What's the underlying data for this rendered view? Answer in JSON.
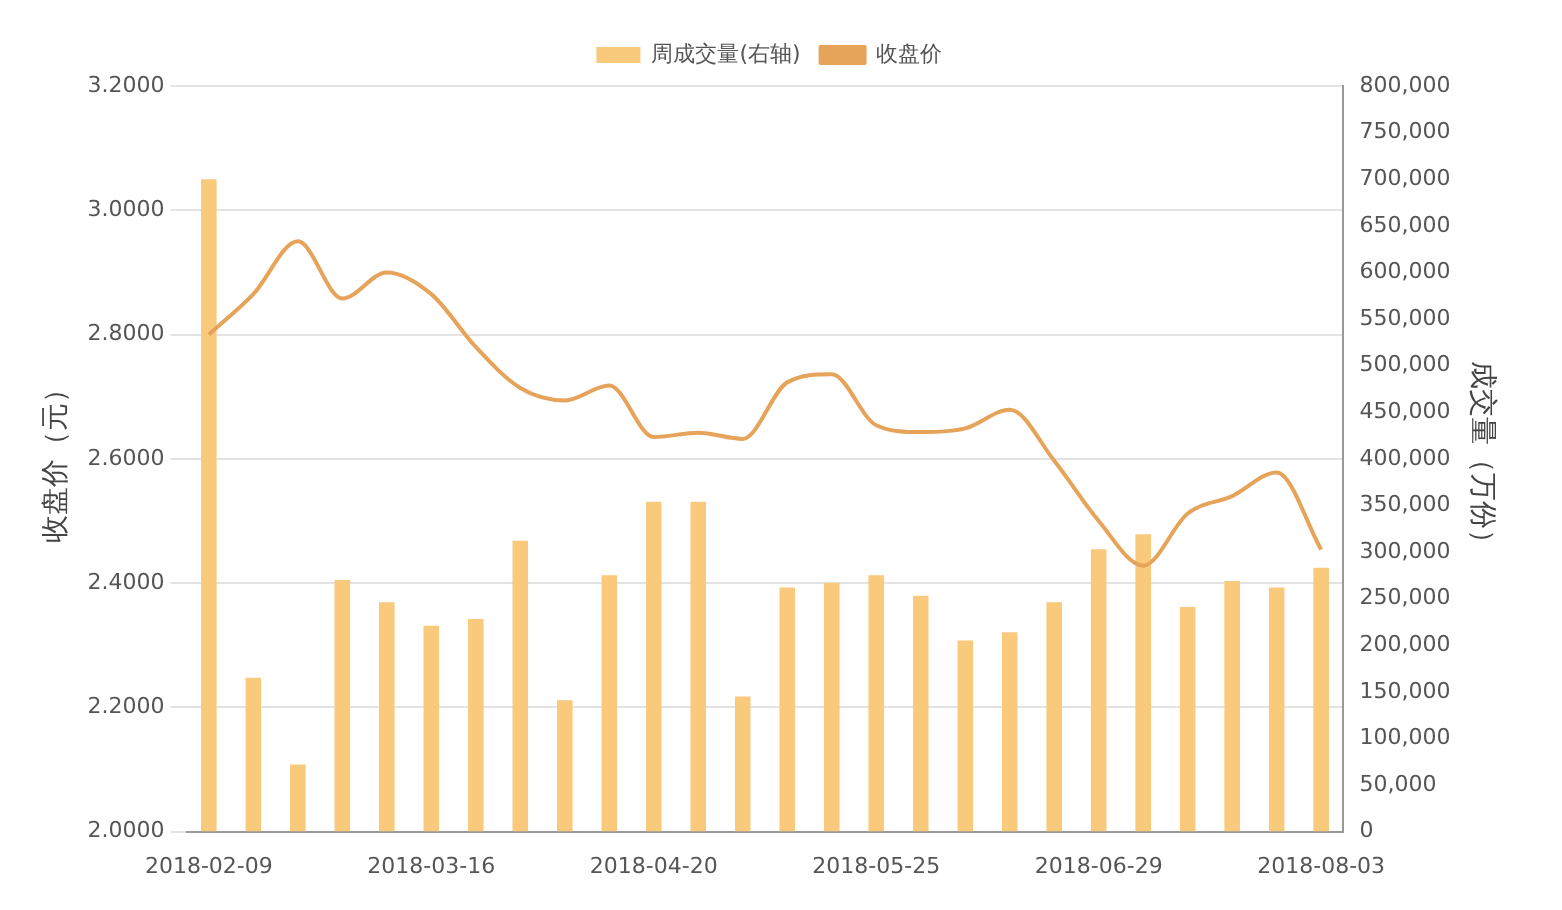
{
  "chart_data": {
    "type": "bar",
    "xlabel": null,
    "ylabel": "收盘价（元）",
    "y2label": "成交量（万份）",
    "categories": [
      "2018-02-09",
      null,
      null,
      null,
      null,
      "2018-03-16",
      null,
      null,
      null,
      null,
      "2018-04-20",
      null,
      null,
      null,
      null,
      "2018-05-25",
      null,
      null,
      null,
      null,
      "2018-06-29",
      null,
      null,
      null,
      null,
      "2018-08-03"
    ],
    "series": [
      {
        "name": "周成交量(右轴)",
        "axis": "y2",
        "color": "#f9c97c",
        "values": [
          700000,
          165000,
          72000,
          270000,
          246000,
          221000,
          228000,
          312000,
          141000,
          275000,
          354000,
          354000,
          145000,
          262000,
          267000,
          275000,
          253000,
          205000,
          214000,
          246000,
          303000,
          319000,
          241000,
          269000,
          262000,
          283000
        ]
      },
      {
        "name": "收盘价",
        "type": "line",
        "axis": "y",
        "color": "#e6a35a",
        "values": [
          2.8,
          2.865,
          2.95,
          2.858,
          2.9,
          2.865,
          2.78,
          2.714,
          2.694,
          2.718,
          2.635,
          2.642,
          2.632,
          2.723,
          2.736,
          2.654,
          2.643,
          2.649,
          2.679,
          2.597,
          2.5,
          2.428,
          2.512,
          2.54,
          2.578,
          2.454
        ]
      }
    ],
    "ylim": [
      2.0,
      3.2
    ],
    "yticks": [
      {
        "value": 2.0,
        "label": "2.0000"
      },
      {
        "value": 2.2,
        "label": "2.2000"
      },
      {
        "value": 2.4,
        "label": "2.4000"
      },
      {
        "value": 2.6,
        "label": "2.6000"
      },
      {
        "value": 2.8,
        "label": "2.8000"
      },
      {
        "value": 3.0,
        "label": "3.0000"
      },
      {
        "value": 3.2,
        "label": "3.2000"
      }
    ],
    "y2lim": [
      0,
      800000
    ],
    "y2ticks": [
      0,
      {
        "value": 50000,
        "label": "50,000"
      },
      {
        "value": 100000,
        "label": "100,000"
      },
      {
        "value": 150000,
        "label": "150,000"
      },
      {
        "value": 200000,
        "label": "200,000"
      },
      {
        "value": 250000,
        "label": "250,000"
      },
      {
        "value": 300000,
        "label": "300,000"
      },
      {
        "value": 350000,
        "label": "350,000"
      },
      {
        "value": 400000,
        "label": "400,000"
      },
      {
        "value": 450000,
        "label": "450,000"
      },
      {
        "value": 500000,
        "label": "500,000"
      },
      {
        "value": 550000,
        "label": "550,000"
      },
      {
        "value": 600000,
        "label": "600,000"
      },
      {
        "value": 650000,
        "label": "650,000"
      },
      {
        "value": 700000,
        "label": "700,000"
      },
      {
        "value": 750000,
        "label": "750,000"
      },
      {
        "value": 800000,
        "label": "800,000"
      }
    ],
    "grid": "y",
    "legend": "top",
    "marker": "none",
    "line_style": "solid"
  }
}
